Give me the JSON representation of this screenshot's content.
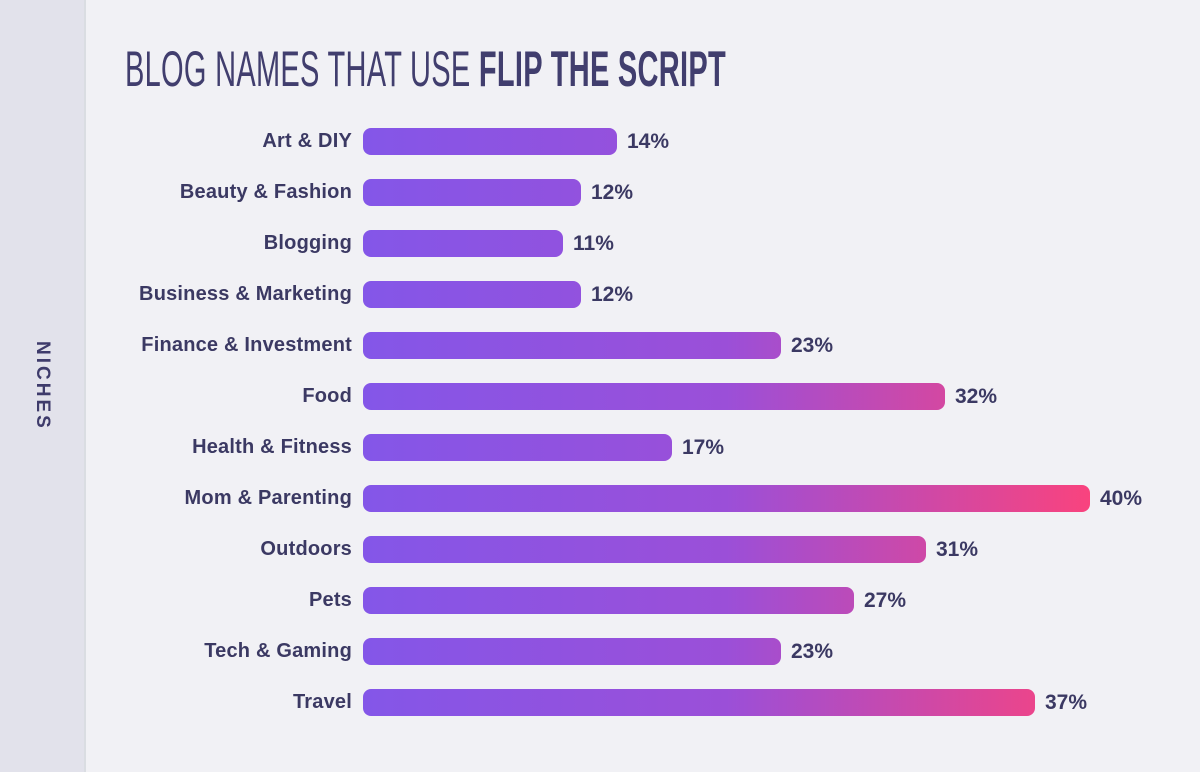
{
  "page": {
    "background_color": "#F1F1F5"
  },
  "sidebar": {
    "label": "NICHES",
    "background_color": "#E2E2EB",
    "text_color": "#3E3B6B"
  },
  "header": {
    "title_regular": "BLOG NAMES THAT USE",
    "title_bold": "FLIP THE SCRIPT",
    "color": "#413E6E"
  },
  "chart_data": {
    "type": "bar",
    "orientation": "horizontal",
    "title": "BLOG NAMES THAT USE FLIP THE SCRIPT",
    "ylabel": "NICHES",
    "xlabel": "",
    "xlim": [
      0,
      40
    ],
    "grid": false,
    "legend": false,
    "unit": "%",
    "categories": [
      "Art & DIY",
      "Beauty & Fashion",
      "Blogging",
      "Business & Marketing",
      "Finance & Investment",
      "Food",
      "Health & Fitness",
      "Mom & Parenting",
      "Outdoors",
      "Pets",
      "Tech & Gaming",
      "Travel"
    ],
    "values": [
      14,
      12,
      11,
      12,
      23,
      32,
      17,
      40,
      31,
      27,
      23,
      37
    ],
    "value_labels": [
      "14%",
      "12%",
      "11%",
      "12%",
      "23%",
      "32%",
      "17%",
      "40%",
      "31%",
      "27%",
      "23%",
      "37%"
    ],
    "bar_gradient": {
      "start": "#8456E8",
      "mid": "#9B4FD8",
      "end": "#F9437E"
    },
    "category_label_color": "#3B3963",
    "value_label_color": "#3B3963"
  }
}
